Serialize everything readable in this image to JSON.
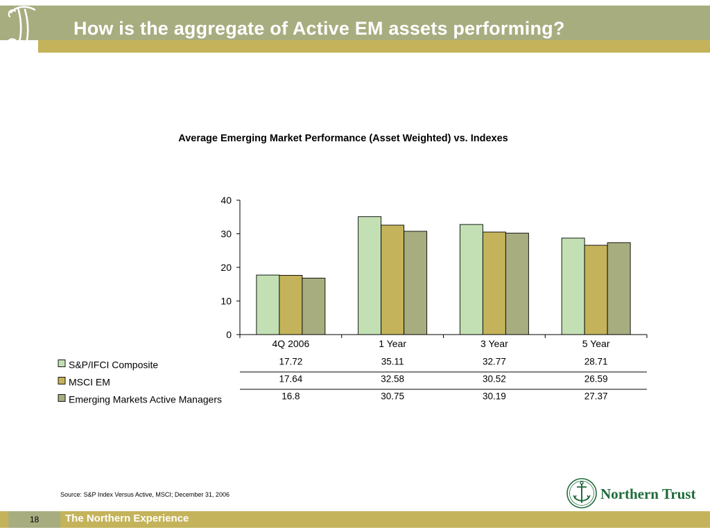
{
  "slide": {
    "title": "How is the aggregate of Active EM assets performing?",
    "page_number": "18",
    "footer_tagline": "The Northern Experience",
    "source_note": "Source: S&P Index Versus Active, MSCI; December 31, 2006",
    "logo_text": "Northern Trust"
  },
  "colors": {
    "header_band": "#a8ad80",
    "header_strip": "#c4b35a",
    "series": [
      "#c2e0b4",
      "#c4b35a",
      "#a8ad80"
    ]
  },
  "chart_data": {
    "type": "bar",
    "title": "Average Emerging Market Performance (Asset Weighted) vs. Indexes",
    "categories": [
      "4Q 2006",
      "1 Year",
      "3 Year",
      "5 Year"
    ],
    "series": [
      {
        "name": "S&P/IFCI Composite",
        "values": [
          17.72,
          35.11,
          32.77,
          28.71
        ],
        "labels": [
          "17.72",
          "35.11",
          "32.77",
          "28.71"
        ]
      },
      {
        "name": "MSCI EM",
        "values": [
          17.64,
          32.58,
          30.52,
          26.59
        ],
        "labels": [
          "17.64",
          "32.58",
          "30.52",
          "26.59"
        ]
      },
      {
        "name": "Emerging Markets Active Managers",
        "values": [
          16.8,
          30.75,
          30.19,
          27.37
        ],
        "labels": [
          "16.8",
          "30.75",
          "30.19",
          "27.37"
        ]
      }
    ],
    "ylim": [
      0,
      40
    ],
    "yticks": [
      "0",
      "10",
      "20",
      "30",
      "40"
    ],
    "xlabel": "",
    "ylabel": "",
    "grid": false,
    "legend": "data-table"
  }
}
